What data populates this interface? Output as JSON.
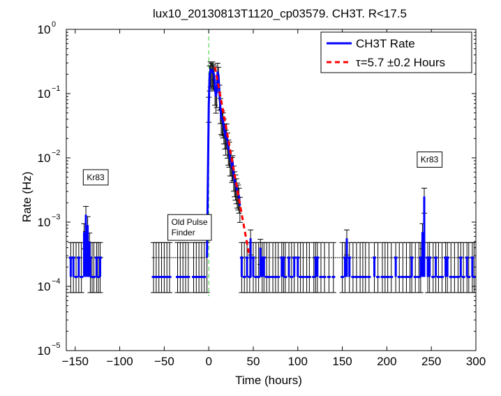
{
  "chart_data": {
    "type": "scatter",
    "title": "lux10_20130813T1120_cp03579. CH3T. R<17.5",
    "xlabel": "Time (hours)",
    "ylabel": "Rate (Hz)",
    "xlim": [
      -160,
      300
    ],
    "ylim": [
      1e-05,
      1
    ],
    "yscale": "log",
    "grid": false,
    "legend_position": "top-right",
    "x_ticks": [
      -150,
      -100,
      -50,
      0,
      50,
      100,
      150,
      200,
      250,
      300
    ],
    "x_tick_labels": [
      "−150",
      "−100",
      "−50",
      "0",
      "50",
      "100",
      "150",
      "200",
      "250",
      "300"
    ],
    "y_ticks": [
      1e-05,
      0.0001,
      0.001,
      0.01,
      0.1,
      1
    ],
    "y_tick_base": [
      "10",
      "10",
      "10",
      "10",
      "10",
      "10"
    ],
    "y_tick_exp": [
      "−5",
      "−4",
      "−3",
      "−2",
      "−1",
      "0"
    ],
    "colors": {
      "rate": "#0000ff",
      "fit": "#ff0000",
      "marker_line": "#33cc33",
      "error_bars": "#000000",
      "baseline": "#000000"
    },
    "series": [
      {
        "name": "CH3T Rate",
        "kind": "rate",
        "points": [
          [
            -155,
            0.00028
          ],
          [
            -152,
            0.00028
          ],
          [
            -149,
            0.00014
          ],
          [
            -146,
            0.00028
          ],
          [
            -143,
            0.00014
          ],
          [
            -140,
            0.0007
          ],
          [
            -138,
            0.0013
          ],
          [
            -136,
            0.0009
          ],
          [
            -134,
            0.0005
          ],
          [
            -133,
            0.00028
          ],
          [
            -131,
            0.00014
          ],
          [
            -129,
            0.00014
          ],
          [
            -126,
            0.00028
          ],
          [
            -124,
            0.00014
          ],
          [
            -122,
            0.00028
          ],
          [
            -62,
            0.00014
          ],
          [
            -59,
            0.00014
          ],
          [
            -56,
            0.00014
          ],
          [
            -53,
            0.00014
          ],
          [
            -50,
            0.00014
          ],
          [
            -47,
            0.00014
          ],
          [
            -44,
            0.00014
          ],
          [
            -35,
            0.00014
          ],
          [
            -32,
            0.00014
          ],
          [
            -29,
            0.00014
          ],
          [
            -26,
            0.00014
          ],
          [
            -23,
            0.00014
          ],
          [
            -17,
            0.00014
          ],
          [
            -14,
            0.00014
          ],
          [
            -11,
            0.00014
          ],
          [
            -8,
            0.00014
          ],
          [
            -5,
            0.00014
          ],
          [
            -2,
            0.00028
          ],
          [
            0,
            0.065
          ],
          [
            1,
            0.2
          ],
          [
            2,
            0.23
          ],
          [
            3,
            0.22
          ],
          [
            4,
            0.23
          ],
          [
            5,
            0.21
          ],
          [
            6,
            0.2
          ],
          [
            7,
            0.12
          ],
          [
            8,
            0.09
          ],
          [
            9,
            0.11
          ],
          [
            10,
            0.22
          ],
          [
            11,
            0.19
          ],
          [
            12,
            0.1
          ],
          [
            13,
            0.062
          ],
          [
            14,
            0.042
          ],
          [
            15,
            0.04
          ],
          [
            16,
            0.037
          ],
          [
            17,
            0.03
          ],
          [
            18,
            0.025
          ],
          [
            19,
            0.02
          ],
          [
            20,
            0.025
          ],
          [
            21,
            0.018
          ],
          [
            22,
            0.014
          ],
          [
            23,
            0.013
          ],
          [
            24,
            0.0095
          ],
          [
            25,
            0.0095
          ],
          [
            26,
            0.0075
          ],
          [
            27,
            0.008
          ],
          [
            28,
            0.0055
          ],
          [
            29,
            0.0045
          ],
          [
            30,
            0.004
          ],
          [
            31,
            0.0035
          ],
          [
            32,
            0.003
          ],
          [
            33,
            0.0028
          ],
          [
            34,
            0.0025
          ],
          [
            35,
            0.0018
          ],
          [
            37,
            0.00028
          ],
          [
            40,
            0.00014
          ],
          [
            43,
            0.00028
          ],
          [
            46,
            0.00014
          ],
          [
            47,
            0.00056
          ],
          [
            50,
            0.00028
          ],
          [
            53,
            0.00014
          ],
          [
            56,
            0.00014
          ],
          [
            58,
            0.0004
          ],
          [
            60,
            0.00028
          ],
          [
            62,
            0.00028
          ],
          [
            65,
            0.00014
          ],
          [
            68,
            0.00014
          ],
          [
            72,
            0.00014
          ],
          [
            75,
            0.00014
          ],
          [
            78,
            0.00014
          ],
          [
            82,
            0.00028
          ],
          [
            84,
            0.00028
          ],
          [
            86,
            0.00014
          ],
          [
            90,
            0.00028
          ],
          [
            93,
            0.00014
          ],
          [
            96,
            0.00028
          ],
          [
            100,
            0.00028
          ],
          [
            103,
            0.00014
          ],
          [
            106,
            0.00014
          ],
          [
            110,
            0.00014
          ],
          [
            113,
            0.00014
          ],
          [
            118,
            0.00014
          ],
          [
            120,
            0.00028
          ],
          [
            122,
            0.00028
          ],
          [
            126,
            0.00014
          ],
          [
            130,
            0.00014
          ],
          [
            135,
            0.00014
          ],
          [
            140,
            0.00014
          ],
          [
            150,
            0.00014
          ],
          [
            153,
            0.00028
          ],
          [
            155,
            0.00056
          ],
          [
            158,
            0.00028
          ],
          [
            162,
            0.00014
          ],
          [
            166,
            0.00014
          ],
          [
            170,
            0.00014
          ],
          [
            173,
            0.00014
          ],
          [
            176,
            0.00014
          ],
          [
            180,
            0.00014
          ],
          [
            186,
            0.00028
          ],
          [
            190,
            0.00014
          ],
          [
            195,
            0.00014
          ],
          [
            198,
            0.00014
          ],
          [
            201,
            0.00014
          ],
          [
            205,
            0.00014
          ],
          [
            210,
            0.00028
          ],
          [
            214,
            0.00014
          ],
          [
            218,
            0.00014
          ],
          [
            222,
            0.00014
          ],
          [
            226,
            0.00014
          ],
          [
            228,
            0.00028
          ],
          [
            232,
            0.00014
          ],
          [
            236,
            0.00014
          ],
          [
            238,
            0.00028
          ],
          [
            240,
            0.0007
          ],
          [
            242,
            0.0025
          ],
          [
            246,
            0.00028
          ],
          [
            248,
            0.00028
          ],
          [
            252,
            0.00014
          ],
          [
            255,
            0.00028
          ],
          [
            258,
            0.00014
          ],
          [
            262,
            0.00014
          ],
          [
            266,
            0.00028
          ],
          [
            268,
            0.00028
          ],
          [
            272,
            0.00014
          ],
          [
            276,
            0.00014
          ],
          [
            280,
            0.00014
          ],
          [
            283,
            0.00028
          ],
          [
            286,
            0.00014
          ],
          [
            290,
            0.00028
          ],
          [
            292,
            0.00014
          ],
          [
            296,
            0.00028
          ],
          [
            298,
            0.00014
          ]
        ],
        "error_bar_fraction_low": 0.45,
        "error_bar_fraction_high": 0.35
      },
      {
        "name": "τ=5.7 ±0.2 Hours",
        "kind": "fit",
        "x": [
          7,
          10,
          15,
          20,
          25,
          30,
          35,
          40,
          45
        ],
        "y": [
          0.26,
          0.155,
          0.065,
          0.027,
          0.0111,
          0.0046,
          0.0019,
          0.00079,
          0.00033
        ]
      }
    ],
    "baseline_rate": 0.00028,
    "baseline_segments": [
      [
        -160,
        -118
      ],
      [
        -64,
        -2
      ],
      [
        36,
        300
      ]
    ],
    "marker_line_x": 0,
    "annotations": [
      {
        "text": "Kr83",
        "x": -137,
        "y": 0.0045
      },
      {
        "text": "Old Pulse",
        "x": -42,
        "y": 0.0009
      },
      {
        "text": "Finder",
        "x": -42,
        "y": 0.00062
      },
      {
        "text": "Kr83",
        "x": 238,
        "y": 0.0085
      }
    ]
  }
}
